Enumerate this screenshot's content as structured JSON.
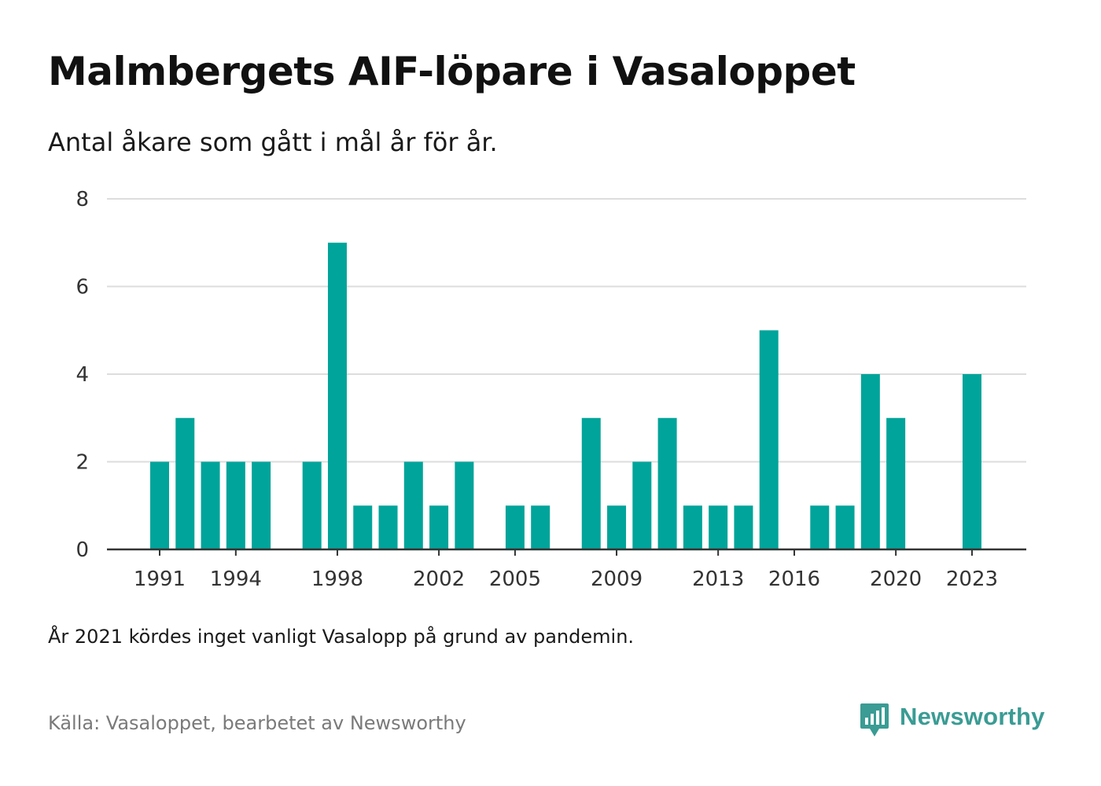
{
  "title": "Malmbergets AIF-löpare i Vasaloppet",
  "subtitle": "Antal åkare som gått i mål år för år.",
  "note": "År 2021 kördes inget vanligt Vasalopp på grund av pandemin.",
  "source": "Källa: Vasaloppet, bearbetet av Newsworthy",
  "brand": {
    "name": "Newsworthy",
    "icon": "newsworthy-logo-icon",
    "color": "#3a9c94"
  },
  "colors": {
    "bar": "#00a49a",
    "grid": "#dddddd",
    "axis": "#333333",
    "tick_text": "#333333"
  },
  "chart_data": {
    "type": "bar",
    "title": "Malmbergets AIF-löpare i Vasaloppet",
    "subtitle": "Antal åkare som gått i mål år för år.",
    "xlabel": "",
    "ylabel": "",
    "ylim": [
      0,
      8
    ],
    "yticks": [
      0,
      2,
      4,
      6,
      8
    ],
    "grid": true,
    "x_tick_labels": [
      "1991",
      "1994",
      "1998",
      "2002",
      "2005",
      "2009",
      "2013",
      "2016",
      "2020",
      "2023"
    ],
    "categories": [
      "1991",
      "1992",
      "1993",
      "1994",
      "1995",
      "1996",
      "1997",
      "1998",
      "1999",
      "2000",
      "2001",
      "2002",
      "2003",
      "2004",
      "2005",
      "2006",
      "2007",
      "2008",
      "2009",
      "2010",
      "2011",
      "2012",
      "2013",
      "2014",
      "2015",
      "2016",
      "2017",
      "2018",
      "2019",
      "2020",
      "2021",
      "2022",
      "2023"
    ],
    "values": [
      2,
      3,
      2,
      2,
      2,
      0,
      2,
      7,
      1,
      1,
      2,
      1,
      2,
      0,
      1,
      1,
      0,
      3,
      1,
      2,
      3,
      1,
      1,
      1,
      5,
      0,
      1,
      1,
      4,
      3,
      0,
      0,
      4
    ]
  }
}
